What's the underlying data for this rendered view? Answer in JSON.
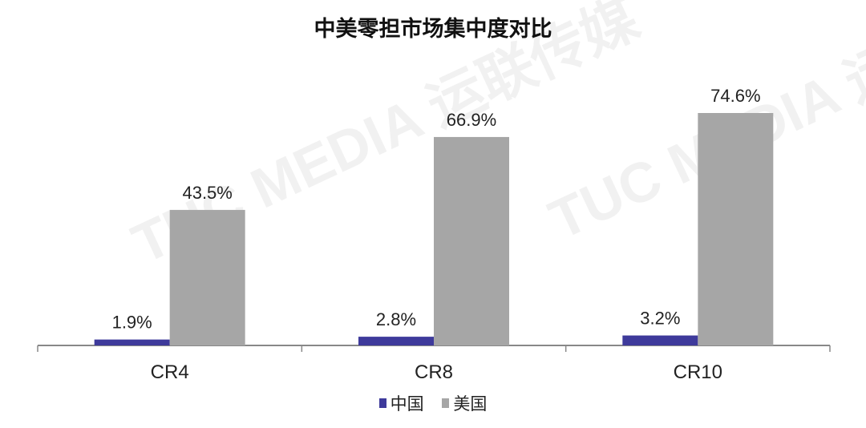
{
  "chart_data": {
    "type": "bar",
    "title": "中美零担市场集中度对比",
    "categories": [
      "CR4",
      "CR8",
      "CR10"
    ],
    "series": [
      {
        "name": "中国",
        "values": [
          1.9,
          2.8,
          3.2
        ],
        "labels": [
          "1.9%",
          "2.8%",
          "3.2%"
        ],
        "color": "#3e3a9b"
      },
      {
        "name": "美国",
        "values": [
          43.5,
          66.9,
          74.6
        ],
        "labels": [
          "43.5%",
          "66.9%",
          "74.6%"
        ],
        "color": "#a6a6a6"
      }
    ],
    "xlabel": "",
    "ylabel": "",
    "ylim": [
      0,
      80
    ],
    "grid": false,
    "legend": "bottom"
  },
  "watermark": "TUC MEDIA 运联传媒"
}
